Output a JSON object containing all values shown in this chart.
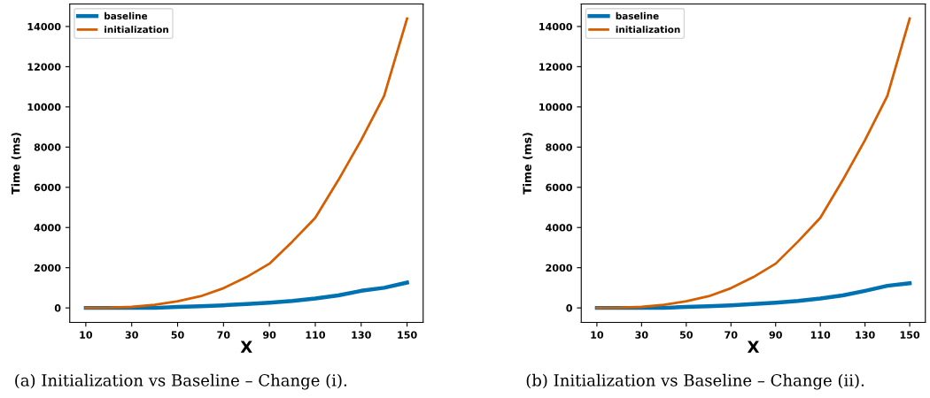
{
  "chart_data": [
    {
      "type": "line",
      "xlabel": "X",
      "ylabel": "Time (ms)",
      "x": [
        10,
        20,
        30,
        40,
        50,
        60,
        70,
        80,
        90,
        100,
        110,
        120,
        130,
        140,
        150
      ],
      "series": [
        {
          "name": "baseline",
          "color": "#0072b2",
          "values": [
            0,
            0,
            0,
            0,
            50,
            80,
            130,
            190,
            260,
            350,
            470,
            620,
            850,
            1000,
            1260
          ]
        },
        {
          "name": "initialization",
          "color": "#d55e00",
          "values": [
            0,
            10,
            50,
            150,
            330,
            580,
            980,
            1530,
            2200,
            3300,
            4480,
            6350,
            8350,
            10550,
            14400
          ]
        }
      ],
      "xlim": [
        3,
        157
      ],
      "xticks": [
        10,
        30,
        50,
        70,
        90,
        110,
        130,
        150
      ],
      "ylim": [
        -720,
        15120
      ],
      "yticks": [
        0,
        2000,
        4000,
        6000,
        8000,
        10000,
        12000,
        14000
      ],
      "legend": "top left",
      "grid": false,
      "annotations": [
        "(a) Initialization vs Baseline – Change (i)."
      ]
    },
    {
      "type": "line",
      "xlabel": "X",
      "ylabel": "Time (ms)",
      "x": [
        10,
        20,
        30,
        40,
        50,
        60,
        70,
        80,
        90,
        100,
        110,
        120,
        130,
        140,
        150
      ],
      "series": [
        {
          "name": "baseline",
          "color": "#0072b2",
          "values": [
            0,
            0,
            0,
            0,
            50,
            80,
            130,
            190,
            260,
            350,
            470,
            620,
            850,
            1100,
            1230
          ]
        },
        {
          "name": "initialization",
          "color": "#d55e00",
          "values": [
            0,
            10,
            50,
            150,
            330,
            580,
            980,
            1530,
            2200,
            3300,
            4480,
            6350,
            8350,
            10550,
            14400
          ]
        }
      ],
      "xlim": [
        3,
        157
      ],
      "xticks": [
        10,
        30,
        50,
        70,
        90,
        110,
        130,
        150
      ],
      "ylim": [
        -720,
        15120
      ],
      "yticks": [
        0,
        2000,
        4000,
        6000,
        8000,
        10000,
        12000,
        14000
      ],
      "legend": "top left",
      "grid": false,
      "annotations": [
        "(b) Initialization vs Baseline – Change (ii)."
      ]
    }
  ]
}
